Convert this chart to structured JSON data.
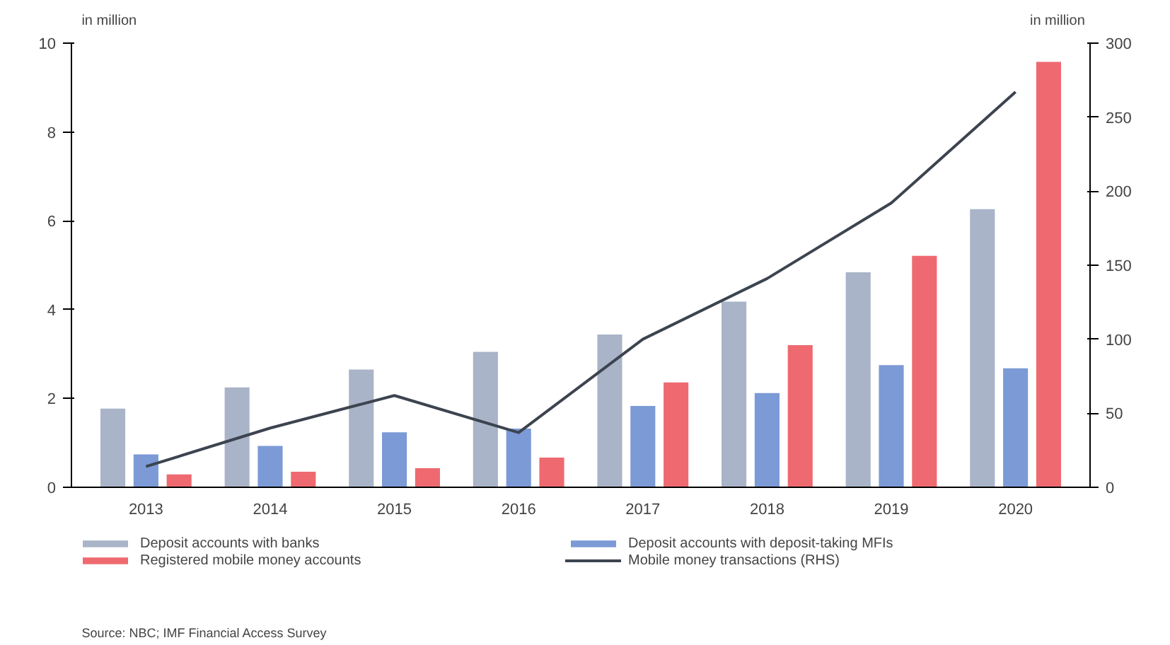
{
  "chart_data": {
    "type": "bar",
    "categories": [
      "2013",
      "2014",
      "2015",
      "2016",
      "2017",
      "2018",
      "2019",
      "2020"
    ],
    "series": [
      {
        "name": "Deposit accounts with banks",
        "color": "#a9b4c8",
        "values": [
          1.77,
          2.25,
          2.65,
          3.05,
          3.44,
          4.18,
          4.84,
          6.26
        ]
      },
      {
        "name": "Deposit accounts with deposit-taking MFIs",
        "color": "#7b9ad6",
        "values": [
          0.74,
          0.93,
          1.24,
          1.32,
          1.83,
          2.12,
          2.75,
          2.68
        ]
      },
      {
        "name": "Registered mobile money accounts",
        "color": "#ee6a70",
        "values": [
          0.29,
          0.35,
          0.43,
          0.67,
          2.36,
          3.2,
          5.21,
          9.58
        ]
      },
      {
        "name": "Mobile money transactions (RHS)",
        "color": "#3d4450",
        "type": "line",
        "axis": "y2",
        "values": [
          14,
          40,
          62,
          37,
          100,
          141,
          192,
          267
        ]
      }
    ],
    "ylabel": "in million",
    "y2label": "in million",
    "ylim": [
      0,
      10
    ],
    "yticks": [
      0,
      2,
      4,
      6,
      8,
      10
    ],
    "y2lim": [
      0,
      300
    ],
    "y2ticks": [
      0,
      50,
      100,
      150,
      200,
      250,
      300
    ],
    "grid": false,
    "legend": "bottom",
    "annotations": [
      "Source: NBC; IMF Financial Access Survey"
    ]
  }
}
